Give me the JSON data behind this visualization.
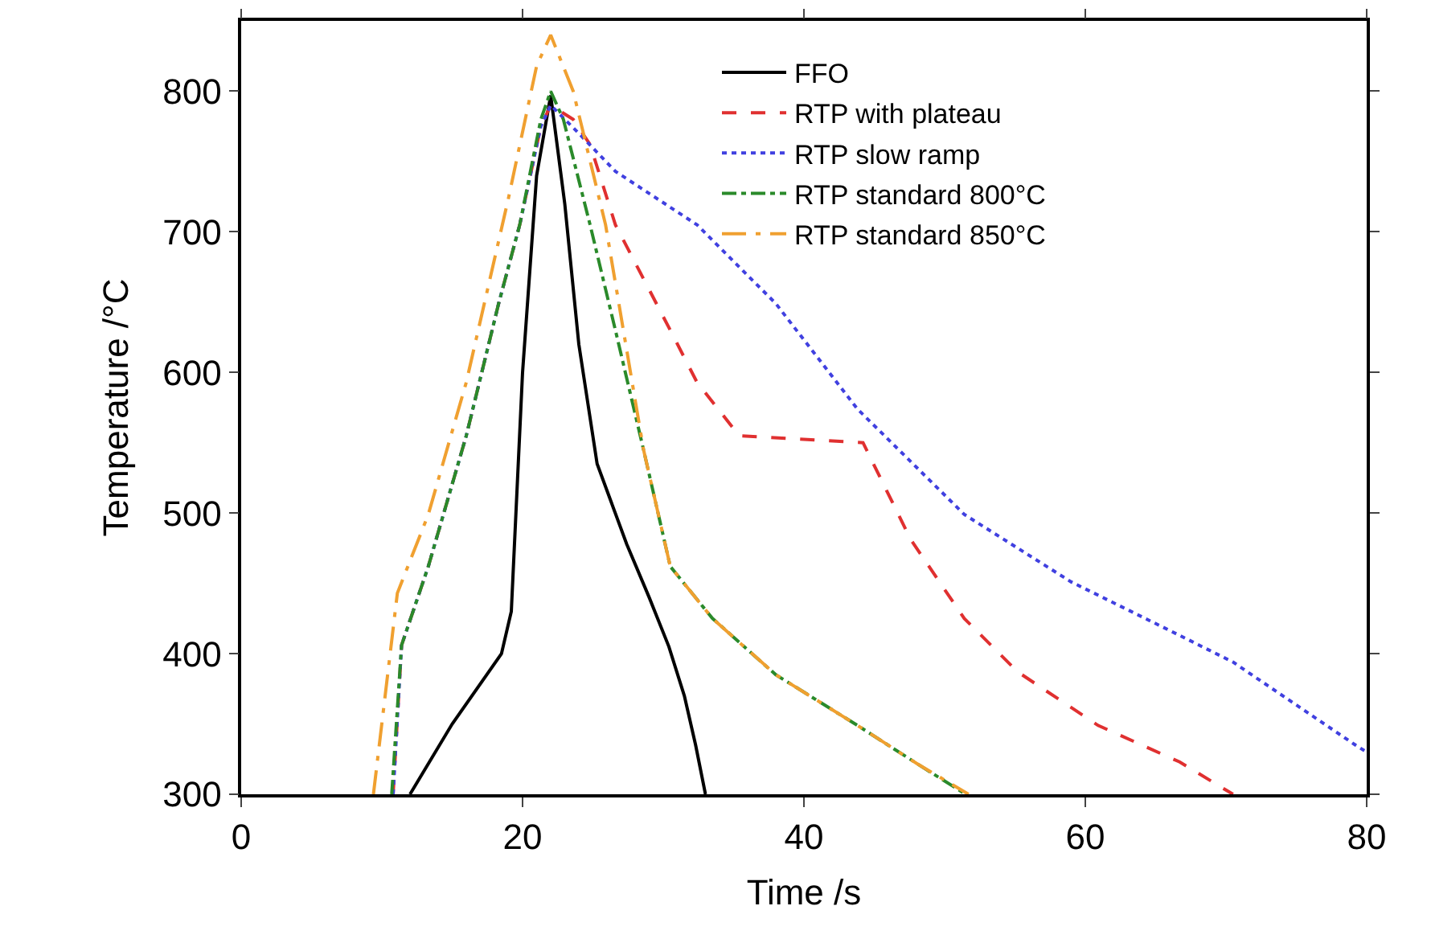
{
  "chart_data": {
    "type": "line",
    "xlabel": "Time /s",
    "ylabel": "Temperature /°C",
    "xlim": [
      0,
      80
    ],
    "xticks": [
      0,
      20,
      40,
      60,
      80
    ],
    "ylim": [
      300,
      850
    ],
    "yticks": [
      300,
      400,
      500,
      600,
      700,
      800
    ],
    "legend": "top right",
    "marker": "none",
    "series": [
      {
        "name": "FFO",
        "color": "#000000",
        "line_style": "solid",
        "x": [
          12,
          15,
          18.5,
          19.2,
          20,
          21,
          22,
          23,
          24,
          25.3,
          27.4,
          29,
          30.4,
          31.5,
          32.3,
          33
        ],
        "values": [
          300,
          350,
          400,
          430,
          600,
          740,
          797,
          720,
          620,
          535,
          478,
          440,
          405,
          370,
          335,
          300
        ]
      },
      {
        "name": "RTP with plateau",
        "color": "#e03030",
        "line_style": "dashed",
        "x": [
          10.8,
          11.4,
          13.3,
          16,
          18.3,
          19.8,
          21.3,
          22,
          23.6,
          24.8,
          26.6,
          30.5,
          32.4,
          35.4,
          44.2,
          47.6,
          51.4,
          55.2,
          60.9,
          66.7,
          70.5
        ],
        "values": [
          300,
          406,
          462,
          555,
          649,
          705,
          775,
          790,
          780,
          762,
          705,
          630,
          593,
          555,
          550,
          481,
          425,
          387,
          349,
          323,
          300
        ]
      },
      {
        "name": "RTP slow ramp",
        "color": "#4040e0",
        "line_style": "dotted",
        "x": [
          10.8,
          11.4,
          13.3,
          16,
          18.3,
          19.8,
          21.3,
          22,
          24,
          26.6,
          32.4,
          38,
          43.8,
          51.4,
          59,
          66.7,
          70.5,
          79.2,
          80
        ],
        "values": [
          300,
          406,
          462,
          555,
          649,
          705,
          775,
          790,
          770,
          743,
          705,
          649,
          574,
          499,
          451,
          413,
          394,
          335,
          330
        ]
      },
      {
        "name": "RTP standard 800°C",
        "color": "#2a8a2a",
        "line_style": "dashdot",
        "x": [
          10.7,
          11.4,
          13.3,
          16,
          18.3,
          19.8,
          21.3,
          22,
          22.9,
          24.8,
          26.6,
          28.6,
          30.5,
          33.5,
          38,
          43.8,
          48,
          51.5
        ],
        "values": [
          300,
          406,
          462,
          555,
          649,
          705,
          780,
          800,
          780,
          705,
          630,
          545,
          462,
          425,
          385,
          349,
          322,
          300
        ]
      },
      {
        "name": "RTP standard 850°C",
        "color": "#f0a030",
        "line_style": "dashdotdot",
        "x": [
          9.4,
          11.1,
          13.3,
          16,
          19,
          21,
          22,
          23.6,
          25.9,
          28.6,
          30.5,
          33.5,
          38,
          43.8,
          48,
          51.7
        ],
        "values": [
          300,
          443,
          499,
          593,
          724,
          818,
          840,
          800,
          705,
          545,
          462,
          425,
          385,
          349,
          322,
          300
        ]
      }
    ]
  }
}
